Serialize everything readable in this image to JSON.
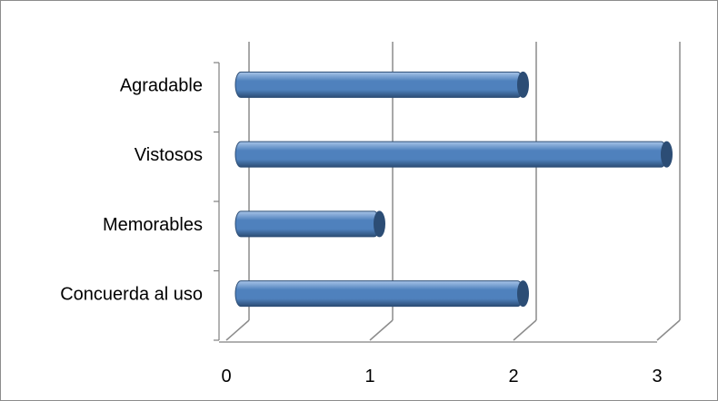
{
  "chart_data": {
    "type": "bar",
    "orientation": "horizontal",
    "style": "3d-cylinder",
    "categories": [
      "Concuerda al uso",
      "Memorables",
      "Vistosos",
      "Agradable"
    ],
    "values": [
      2,
      1,
      3,
      2
    ],
    "xlim": [
      0,
      3
    ],
    "x_ticks": [
      "0",
      "1",
      "2",
      "3"
    ],
    "title": "",
    "xlabel": "",
    "ylabel": "",
    "grid": true,
    "legend": "none",
    "colors": {
      "bar_fill": "#4F81BD",
      "bar_dark": "#2C4D75",
      "bar_light": "#A8C4E8",
      "gridline": "#8C8C8C",
      "axis": "#808080"
    }
  }
}
